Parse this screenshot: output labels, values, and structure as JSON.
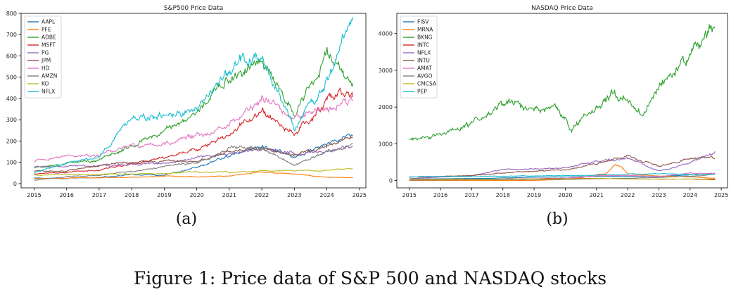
{
  "figure": {
    "caption": "Figure 1: Price data of S&P 500 and NASDAQ stocks",
    "sublabels": [
      "(a)",
      "(b)"
    ]
  },
  "chart_data": [
    {
      "type": "line",
      "title": "S&P500 Price Data",
      "xlabel": "",
      "ylabel": "",
      "xlim": [
        2014.6,
        2025.2
      ],
      "ylim": [
        -20,
        800
      ],
      "xticks": [
        2015,
        2016,
        2017,
        2018,
        2019,
        2020,
        2021,
        2022,
        2023,
        2024,
        2025
      ],
      "yticks": [
        0,
        100,
        200,
        300,
        400,
        500,
        600,
        700,
        800
      ],
      "legend_position": "top-left",
      "series": [
        {
          "name": "AAPL",
          "color": "#1f77b4",
          "x": [
            2015,
            2016,
            2017,
            2018,
            2019,
            2020,
            2021,
            2022,
            2023,
            2024,
            2024.8
          ],
          "values": [
            27,
            24,
            28,
            43,
            39,
            75,
            130,
            178,
            130,
            185,
            230
          ]
        },
        {
          "name": "PFE",
          "color": "#ff7f0e",
          "x": [
            2015,
            2016,
            2017,
            2018,
            2019,
            2020,
            2021,
            2022,
            2023,
            2024,
            2024.8
          ],
          "values": [
            24,
            26,
            27,
            31,
            34,
            32,
            36,
            55,
            46,
            29,
            29
          ]
        },
        {
          "name": "ADBE",
          "color": "#2ca02c",
          "x": [
            2015,
            2016,
            2017,
            2018,
            2019,
            2020,
            2021,
            2022,
            2023,
            2024,
            2024.6,
            2024.8
          ],
          "values": [
            74,
            95,
            110,
            180,
            250,
            330,
            500,
            560,
            330,
            600,
            500,
            490
          ]
        },
        {
          "name": "MSFT",
          "color": "#d62728",
          "x": [
            2015,
            2016,
            2017,
            2018,
            2019,
            2020,
            2021,
            2022,
            2023,
            2024,
            2024.6,
            2024.8
          ],
          "values": [
            46,
            54,
            62,
            95,
            115,
            160,
            230,
            330,
            240,
            375,
            450,
            420
          ]
        },
        {
          "name": "PG",
          "color": "#9467bd",
          "x": [
            2015,
            2016,
            2017,
            2018,
            2019,
            2020,
            2021,
            2022,
            2023,
            2024,
            2024.8
          ],
          "values": [
            80,
            78,
            85,
            90,
            95,
            120,
            135,
            160,
            145,
            150,
            172
          ]
        },
        {
          "name": "JPM",
          "color": "#8c564b",
          "x": [
            2015,
            2016,
            2017,
            2018,
            2019,
            2020,
            2021,
            2022,
            2023,
            2024,
            2024.8
          ],
          "values": [
            60,
            60,
            87,
            105,
            105,
            100,
            155,
            160,
            135,
            170,
            225
          ]
        },
        {
          "name": "HD",
          "color": "#e377c2",
          "x": [
            2015,
            2016,
            2017,
            2018,
            2019,
            2020,
            2021,
            2022,
            2023,
            2024,
            2024.8
          ],
          "values": [
            105,
            130,
            135,
            180,
            185,
            230,
            270,
            400,
            310,
            350,
            400
          ]
        },
        {
          "name": "AMZN",
          "color": "#7f7f7f",
          "x": [
            2015,
            2016,
            2017,
            2018,
            2019,
            2020,
            2021,
            2022,
            2023,
            2024,
            2024.8
          ],
          "values": [
            16,
            33,
            38,
            60,
            78,
            95,
            165,
            167,
            85,
            150,
            185
          ]
        },
        {
          "name": "KO",
          "color": "#bcbd22",
          "x": [
            2015,
            2016,
            2017,
            2018,
            2019,
            2020,
            2021,
            2022,
            2023,
            2024,
            2024.8
          ],
          "values": [
            40,
            42,
            42,
            46,
            48,
            55,
            52,
            60,
            62,
            60,
            70
          ]
        },
        {
          "name": "NFLX",
          "color": "#17becf",
          "x": [
            2015,
            2016,
            2017,
            2018,
            2019,
            2020,
            2021,
            2022,
            2023,
            2024,
            2024.8
          ],
          "values": [
            50,
            95,
            130,
            300,
            320,
            340,
            520,
            600,
            260,
            480,
            760
          ]
        }
      ]
    },
    {
      "type": "line",
      "title": "NASDAQ Price Data",
      "xlabel": "",
      "ylabel": "",
      "xlim": [
        2014.6,
        2025.2
      ],
      "ylim": [
        -200,
        4550
      ],
      "xticks": [
        2015,
        2016,
        2017,
        2018,
        2019,
        2020,
        2021,
        2022,
        2023,
        2024,
        2025
      ],
      "yticks": [
        0,
        1000,
        2000,
        3000,
        4000
      ],
      "legend_position": "top-left",
      "series": [
        {
          "name": "FISV",
          "color": "#1f77b4",
          "x": [
            2015,
            2017,
            2019,
            2020,
            2021,
            2022,
            2023,
            2024,
            2024.8
          ],
          "values": [
            40,
            55,
            85,
            100,
            110,
            110,
            105,
            150,
            190
          ]
        },
        {
          "name": "MRNA",
          "color": "#ff7f0e",
          "x": [
            2015,
            2018.9,
            2019.5,
            2020,
            2020.5,
            2021,
            2021.3,
            2021.6,
            2021.8,
            2022,
            2022.5,
            2023,
            2024,
            2024.8
          ],
          "values": [
            0,
            0,
            18,
            25,
            70,
            160,
            180,
            430,
            350,
            180,
            150,
            120,
            100,
            60
          ]
        },
        {
          "name": "BKNG",
          "color": "#2ca02c",
          "x": [
            2015,
            2016,
            2017,
            2017.7,
            2018.2,
            2019,
            2019.8,
            2020.2,
            2020.5,
            2021,
            2021.5,
            2022,
            2022.5,
            2023,
            2023.5,
            2024,
            2024.6,
            2024.8
          ],
          "values": [
            1150,
            1250,
            1550,
            1900,
            2100,
            1900,
            2000,
            1300,
            1700,
            2000,
            2300,
            2200,
            1900,
            2500,
            3000,
            3600,
            4000,
            4350
          ]
        },
        {
          "name": "INTC",
          "color": "#d62728",
          "x": [
            2015,
            2017,
            2019,
            2020,
            2021,
            2022,
            2023,
            2024,
            2024.8
          ],
          "values": [
            35,
            37,
            47,
            60,
            55,
            45,
            35,
            40,
            22
          ]
        },
        {
          "name": "NFLX",
          "color": "#9467bd",
          "x": [
            2015,
            2016,
            2017,
            2018,
            2019,
            2020,
            2021,
            2022,
            2023,
            2024,
            2024.8
          ],
          "values": [
            50,
            95,
            130,
            300,
            320,
            340,
            520,
            600,
            260,
            480,
            760
          ]
        },
        {
          "name": "INTU",
          "color": "#8c564b",
          "x": [
            2015,
            2016,
            2017,
            2018,
            2019,
            2020,
            2021,
            2022,
            2023,
            2024,
            2024.8
          ],
          "values": [
            90,
            110,
            140,
            200,
            260,
            300,
            450,
            650,
            400,
            600,
            620
          ]
        },
        {
          "name": "AMAT",
          "color": "#e377c2",
          "x": [
            2015,
            2017,
            2019,
            2020,
            2021,
            2022,
            2023,
            2024,
            2024.8
          ],
          "values": [
            20,
            35,
            45,
            55,
            130,
            140,
            110,
            200,
            190
          ]
        },
        {
          "name": "AVGO",
          "color": "#7f7f7f",
          "x": [
            2015,
            2017,
            2019,
            2020,
            2021,
            2022,
            2023,
            2024,
            2024.8
          ],
          "values": [
            10,
            20,
            28,
            30,
            45,
            60,
            80,
            120,
            170
          ]
        },
        {
          "name": "CMCSA",
          "color": "#bcbd22",
          "x": [
            2015,
            2017,
            2019,
            2020,
            2021,
            2022,
            2023,
            2024,
            2024.8
          ],
          "values": [
            28,
            35,
            40,
            45,
            55,
            40,
            40,
            42,
            42
          ]
        },
        {
          "name": "PEP",
          "color": "#17becf",
          "x": [
            2015,
            2017,
            2019,
            2020,
            2021,
            2022,
            2023,
            2024,
            2024.8
          ],
          "values": [
            100,
            110,
            125,
            140,
            150,
            175,
            180,
            165,
            170
          ]
        }
      ]
    }
  ]
}
